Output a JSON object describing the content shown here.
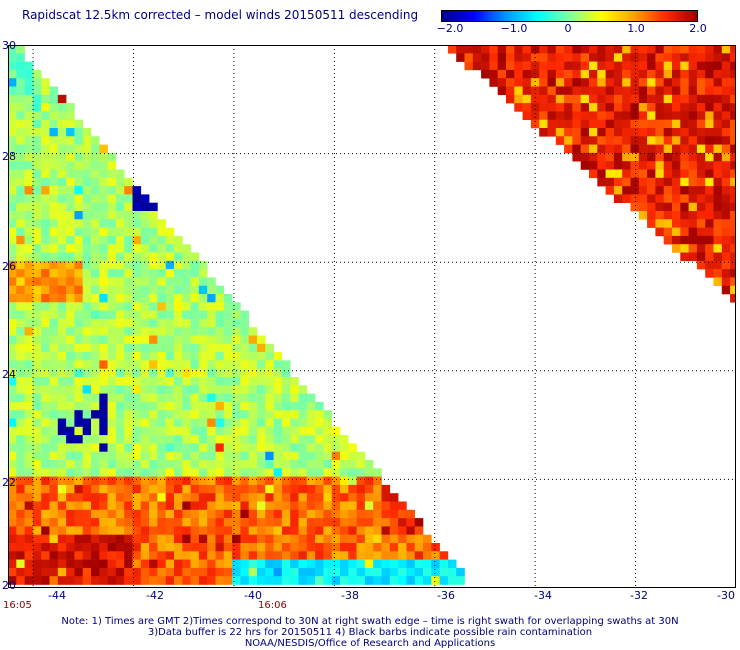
{
  "title": "Rapidscat 12.5km corrected – model winds 20150511 descending",
  "colorbar": {
    "ticks": [
      "−2.0",
      "−1.0",
      "0",
      "1.0",
      "2.0"
    ],
    "range": [
      -2.0,
      2.0
    ],
    "colors": [
      "#00008B",
      "#0000FF",
      "#0096FF",
      "#00FFFF",
      "#7FFFA0",
      "#FFFF00",
      "#FFA500",
      "#FF2A00",
      "#A00000"
    ]
  },
  "map": {
    "lon_ticks": [
      "-44",
      "-42",
      "-40",
      "-38",
      "-36",
      "-34",
      "-32",
      "-30"
    ],
    "lat_ticks": [
      "30",
      "28",
      "26",
      "24",
      "22",
      "20"
    ],
    "lon_range": [
      -44.5,
      -30
    ],
    "lat_range": [
      20,
      30
    ],
    "grid": "dotted",
    "times": [
      "16:05",
      "16:06"
    ],
    "swath_1": {
      "description_values": "wind speed difference, mostly 0 to +1.5 m/s with local negative patches",
      "bounds": "west edge to diagonal from (-44.5,30) toward (-35.4,20)"
    },
    "swath_2": {
      "bounds": "triangle from (-35.6,30) to (-30,30) to (-30,25.4)",
      "typical_values": "+1.0 to +2.0"
    }
  },
  "notes": [
    "Note: 1) Times are GMT 2)Times correspond to 30N at right swath edge – time is right swath for overlapping swaths at 30N",
    "3)Data buffer is 22 hrs for 20150511 4) Black barbs indicate possible rain contamination",
    "NOAA/NESDIS/Office of Research and Applications"
  ]
}
